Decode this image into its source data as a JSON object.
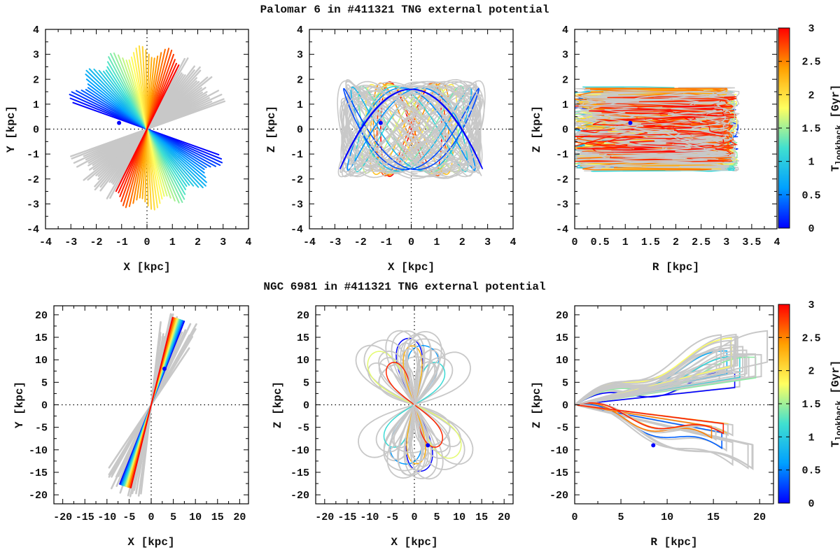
{
  "figure": {
    "title_top": "Palomar 6 in #411321 TNG external potential",
    "title_bottom": "NGC 6981 in #411321 TNG external potential",
    "colorbar": {
      "label_main": "T",
      "label_sub": "lookback",
      "label_unit": " [Gyr]",
      "ticks": [
        "0",
        "0.5",
        "1",
        "1.5",
        "2",
        "2.5",
        "3"
      ],
      "range": [
        0,
        3
      ],
      "colormap": [
        "#0000ff",
        "#00a0ff",
        "#40e0d0",
        "#ffff60",
        "#ffa000",
        "#ff0000"
      ],
      "past_orbit_color": "#c8c8c8"
    }
  },
  "chart_data": [
    {
      "id": "pal6_xy",
      "type": "line",
      "title": "Palomar 6 in #411321 TNG external potential",
      "xlabel": "X [kpc]",
      "ylabel": "Y [kpc]",
      "xlim": [
        -4,
        4
      ],
      "ylim": [
        -4,
        4
      ],
      "xticks": [
        "-4",
        "-3",
        "-2",
        "-1",
        "0",
        "1",
        "2",
        "3",
        "4"
      ],
      "yticks": [
        "-4",
        "-3",
        "-2",
        "-1",
        "0",
        "1",
        "2",
        "3",
        "4"
      ],
      "current_position": {
        "x": -1.1,
        "y": 0.25
      },
      "description": "radial orbit fan through origin",
      "series": [
        {
          "name": "radial fan",
          "angle_start_deg": 160,
          "angle_end_deg": 64,
          "radius_kpc": [
            2.9,
            3.3
          ],
          "t_gyr": [
            0,
            3
          ]
        },
        {
          "name": "past orbit (gray)",
          "angle_start_deg": 64,
          "angle_end_deg": 20,
          "radius_kpc": [
            2.6,
            3.3
          ]
        }
      ]
    },
    {
      "id": "pal6_xz",
      "type": "line",
      "xlabel": "X [kpc]",
      "ylabel": "Z [kpc]",
      "xlim": [
        -4,
        4
      ],
      "ylim": [
        -4,
        4
      ],
      "xticks": [
        "-4",
        "-3",
        "-2",
        "-1",
        "0",
        "1",
        "2",
        "3",
        "4"
      ],
      "yticks": [
        "-4",
        "-3",
        "-2",
        "-1",
        "0",
        "1",
        "2",
        "3",
        "4"
      ],
      "current_position": {
        "x": -1.2,
        "y": 0.25
      },
      "description": "Lissajous-like loops, |X| up to 3 kpc, |Z| up to 2 kpc"
    },
    {
      "id": "pal6_rz",
      "type": "line",
      "xlabel": "R [kpc]",
      "ylabel": "Z [kpc]",
      "xlim": [
        0,
        4
      ],
      "ylim": [
        -4,
        4
      ],
      "xticks": [
        "0",
        "0.5",
        "1",
        "1.5",
        "2",
        "2.5",
        "3",
        "3.5",
        "4"
      ],
      "yticks": [
        "-4",
        "-3",
        "-2",
        "-1",
        "0",
        "1",
        "2",
        "3",
        "4"
      ],
      "current_position": {
        "x": 1.1,
        "y": 0.25
      },
      "description": "meridional box filled from R=0 to ~3.3 kpc, |Z| up to ~1.7 kpc"
    },
    {
      "id": "ngc6981_xy",
      "type": "line",
      "title": "NGC 6981 in #411321 TNG external potential",
      "xlabel": "X [kpc]",
      "ylabel": "Y [kpc]",
      "xlim": [
        -22,
        22
      ],
      "ylim": [
        -22,
        22
      ],
      "xticks": [
        "-20",
        "-15",
        "-10",
        "-5",
        "0",
        "5",
        "10",
        "15",
        "20"
      ],
      "yticks": [
        "-20",
        "-15",
        "-10",
        "-5",
        "0",
        "5",
        "10",
        "15",
        "20"
      ],
      "current_position": {
        "x": 3,
        "y": 8
      },
      "description": "nearly radial orbit oriented ~70 deg, extending to ~21 kpc"
    },
    {
      "id": "ngc6981_xz",
      "type": "line",
      "xlabel": "X [kpc]",
      "ylabel": "Z [kpc]",
      "xlim": [
        -22,
        22
      ],
      "ylim": [
        -22,
        22
      ],
      "xticks": [
        "-20",
        "-15",
        "-10",
        "-5",
        "0",
        "5",
        "10",
        "15",
        "20"
      ],
      "yticks": [
        "-20",
        "-15",
        "-10",
        "-5",
        "0",
        "5",
        "10",
        "15",
        "20"
      ],
      "current_position": {
        "x": 3,
        "y": -9
      },
      "description": "narrow petal loops through origin, |Z| up to ~17 kpc"
    },
    {
      "id": "ngc6981_rz",
      "type": "line",
      "xlabel": "R [kpc]",
      "ylabel": "Z [kpc]",
      "xlim": [
        0,
        21.5
      ],
      "ylim": [
        -22,
        22
      ],
      "xticks": [
        "0",
        "5",
        "10",
        "15",
        "20"
      ],
      "yticks": [
        "-20",
        "-15",
        "-10",
        "-5",
        "0",
        "5",
        "10",
        "15",
        "20"
      ],
      "current_position": {
        "x": 8.5,
        "y": -9
      },
      "description": "wedge-shaped meridional orbit out to R ~21 kpc, |Z| up to ~16 kpc"
    }
  ]
}
